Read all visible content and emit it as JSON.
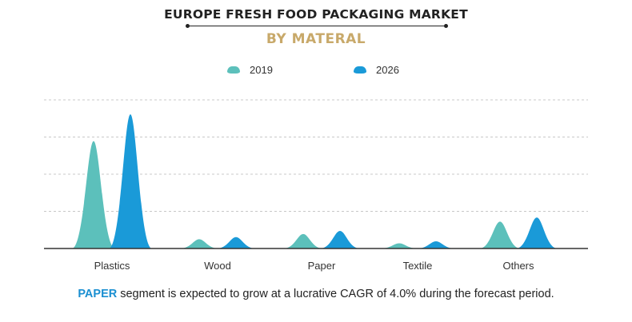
{
  "header": {
    "title": "EUROPE FRESH FOOD PACKAGING MARKET",
    "subtitle": "BY MATERAL"
  },
  "caption": {
    "highlight": "PAPER",
    "text": " segment is expected to grow at a lucrative CAGR of 4.0% during the forecast period."
  },
  "colors": {
    "series_2019": "#5cc0bb",
    "series_2026": "#1a9ad8",
    "grid": "#c8c8c8",
    "baseline": "#333333"
  },
  "chart_data": {
    "type": "area",
    "title": "EUROPE FRESH FOOD PACKAGING MARKET",
    "subtitle": "BY MATERAL",
    "categories": [
      "Plastics",
      "Wood",
      "Paper",
      "Textile",
      "Others"
    ],
    "series": [
      {
        "name": "2019",
        "values": [
          52,
          4.5,
          7,
          2.5,
          13
        ]
      },
      {
        "name": "2026",
        "values": [
          65,
          5.5,
          8.5,
          3.5,
          15
        ]
      }
    ],
    "ylim": [
      0,
      72
    ],
    "grid": true,
    "gridlines": 4,
    "legend": "top-center",
    "xlabel": "",
    "ylabel": ""
  }
}
